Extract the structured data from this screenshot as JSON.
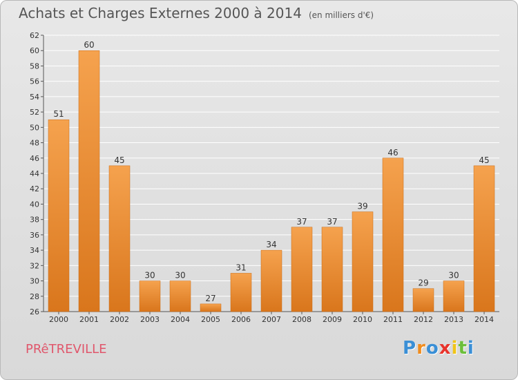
{
  "title": "Achats et Charges Externes 2000 à 2014",
  "subtitle": "(en milliers d'€)",
  "commune": "PRêTREVILLE",
  "logo": {
    "letters": [
      "P",
      "r",
      "o",
      "x",
      "i",
      "t",
      "i"
    ],
    "colors": [
      "#3a8fd6",
      "#f08c1e",
      "#3a8fd6",
      "#e8342c",
      "#f0c419",
      "#6cbf3a",
      "#3a8fd6"
    ]
  },
  "colors": {
    "bar_top": "#f5a24e",
    "bar_bottom": "#d9761c",
    "grid": "#ffffff"
  },
  "chart_data": {
    "type": "bar",
    "title": "Achats et Charges Externes 2000 à 2014",
    "subtitle": "(en milliers d'€)",
    "xlabel": "",
    "ylabel": "",
    "categories": [
      "2000",
      "2001",
      "2002",
      "2003",
      "2004",
      "2005",
      "2006",
      "2007",
      "2008",
      "2009",
      "2010",
      "2011",
      "2012",
      "2013",
      "2014"
    ],
    "values": [
      51,
      60,
      45,
      30,
      30,
      27,
      31,
      34,
      37,
      37,
      39,
      46,
      29,
      30,
      45
    ],
    "ylim": [
      26,
      62
    ],
    "ytick_step": 2,
    "grid": true
  }
}
